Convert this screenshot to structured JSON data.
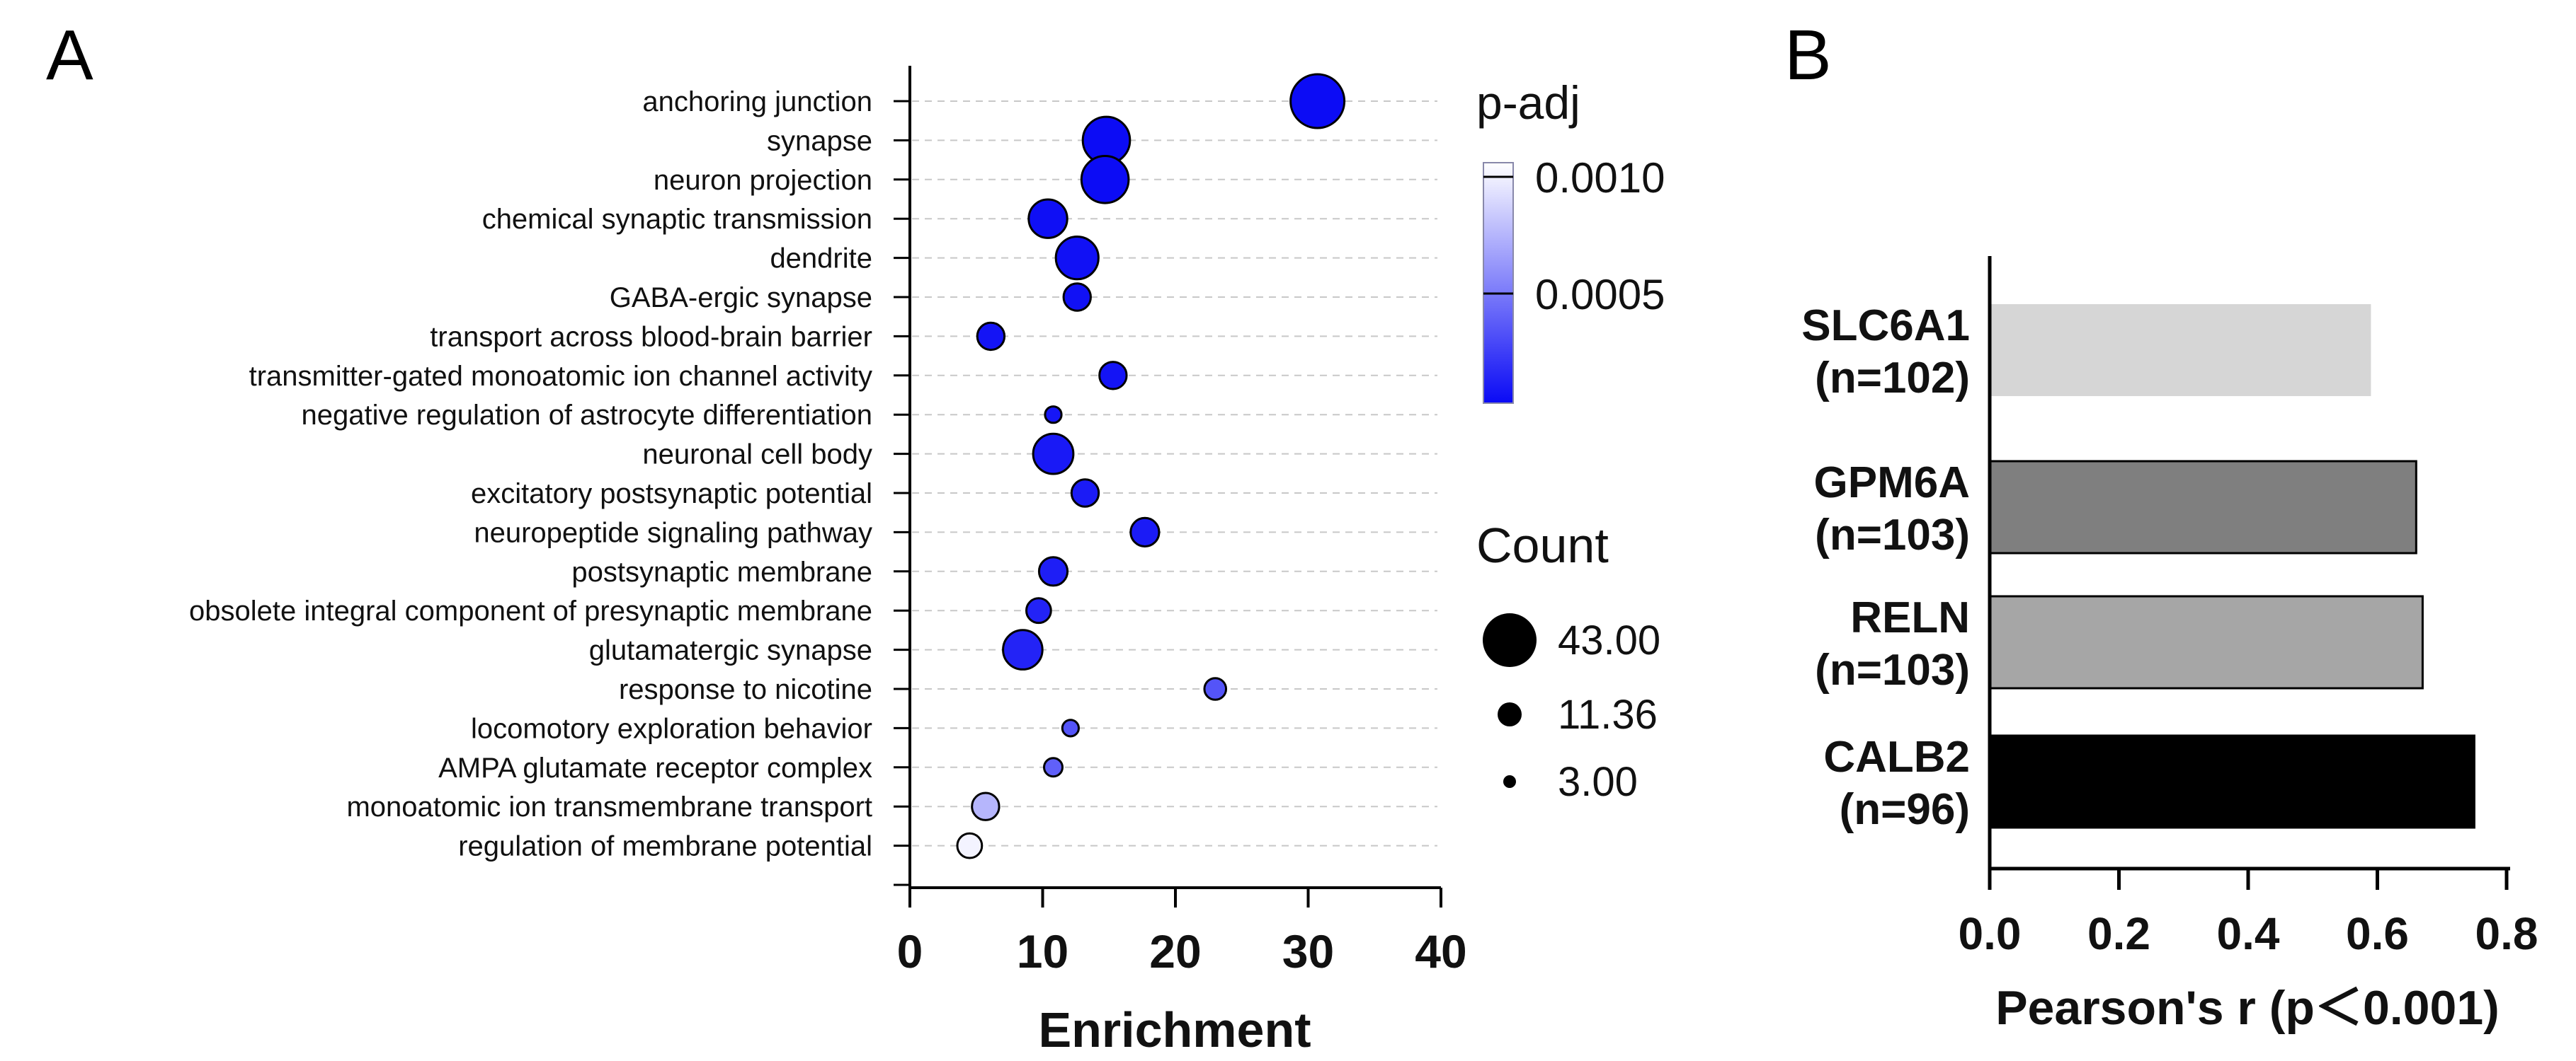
{
  "panels": {
    "a_label": "A",
    "b_label": "B"
  },
  "chart_data": [
    {
      "type": "scatter",
      "panel": "A",
      "title": "",
      "xlabel": "Enrichment",
      "ylabel": "",
      "xlim": [
        0,
        40
      ],
      "xticks": [
        "0",
        "10",
        "20",
        "30",
        "40"
      ],
      "grid": "dashed horizontal lines at each category",
      "categories": [
        "anchoring junction",
        "synapse",
        "neuron projection",
        "chemical synaptic transmission",
        "dendrite",
        "GABA-ergic synapse",
        "transport across blood-brain barrier",
        "transmitter-gated monoatomic ion channel activity",
        "negative regulation of astrocyte differentiation",
        "neuronal cell body",
        "excitatory postsynaptic potential",
        "neuropeptide signaling pathway",
        "postsynaptic membrane",
        "obsolete integral component of presynaptic membrane",
        "glutamatergic synapse",
        "response to nicotine",
        "locomotory exploration behavior",
        "AMPA glutamate receptor complex",
        "monoatomic ion transmembrane transport",
        "regulation of membrane potential"
      ],
      "series": [
        {
          "x": [
            30.7,
            14.8,
            14.7,
            10.4,
            12.6,
            12.6,
            6.1,
            15.3,
            10.8,
            10.8,
            13.2,
            17.7,
            10.8,
            9.7,
            8.5,
            23.0,
            12.1,
            10.8,
            5.7,
            4.5
          ],
          "size": [
            43,
            33,
            33,
            22,
            27,
            11,
            11,
            11,
            4,
            24,
            11,
            12,
            12,
            9,
            23,
            7,
            4,
            5,
            11,
            9
          ],
          "padj": [
            1e-05,
            1e-05,
            1e-05,
            2e-05,
            3e-05,
            3e-05,
            4e-05,
            4e-05,
            5e-05,
            6e-05,
            7e-05,
            7e-05,
            8e-05,
            0.0001,
            0.0001,
            0.0003,
            0.0003,
            0.00035,
            0.0007,
            0.00095
          ]
        }
      ],
      "color_legend": {
        "title": "p-adj",
        "ticks": [
          "0.0010",
          "0.0005"
        ],
        "range": [
          0,
          0.001
        ],
        "colors": {
          "low": "#0a0af5",
          "high": "#ffffff"
        }
      },
      "size_legend": {
        "title": "Count",
        "entries": [
          "43.00",
          "11.36",
          "3.00"
        ],
        "values": [
          43,
          11.36,
          3
        ]
      },
      "marker_outline": "#000000"
    },
    {
      "type": "bar",
      "panel": "B",
      "orientation": "horizontal",
      "title": "",
      "xlabel": "Pearson's r (p＜0.001)",
      "ylabel": "",
      "xlim": [
        0,
        0.8
      ],
      "xticks": [
        "0.0",
        "0.2",
        "0.4",
        "0.6",
        "0.8"
      ],
      "categories": [
        {
          "gene": "SLC6A1",
          "n": "(n=102)"
        },
        {
          "gene": "GPM6A",
          "n": "(n=103)"
        },
        {
          "gene": "RELN",
          "n": "(n=103)"
        },
        {
          "gene": "CALB2",
          "n": "(n=96)"
        }
      ],
      "values": [
        0.59,
        0.66,
        0.67,
        0.75
      ],
      "colors": [
        "#d6d6d6",
        "#7f7f7f",
        "#a6a6a6",
        "#000000"
      ],
      "outline": [
        "none",
        "#000000",
        "#000000",
        "#000000"
      ]
    }
  ]
}
